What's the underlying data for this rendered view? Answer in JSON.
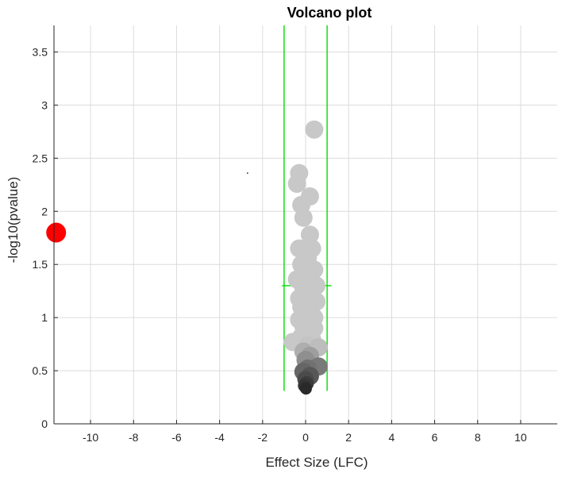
{
  "chart_data": {
    "type": "scatter",
    "title": "Volcano plot",
    "xlabel": "Effect Size (LFC)",
    "ylabel": "-log10(pvalue)",
    "xlim": [
      -11.7,
      11.7
    ],
    "ylim": [
      0,
      3.75
    ],
    "xticks": [
      -10,
      -8,
      -6,
      -4,
      -2,
      0,
      2,
      4,
      6,
      8,
      10
    ],
    "xtick_labels": [
      "-10",
      "-8",
      "-6",
      "-4",
      "-2",
      "0",
      "2",
      "4",
      "6",
      "8",
      "10"
    ],
    "yticks": [
      0,
      0.5,
      1,
      1.5,
      2,
      2.5,
      3,
      3.5
    ],
    "ytick_labels": [
      "0",
      "0.5",
      "1",
      "1.5",
      "2",
      "2.5",
      "3",
      "3.5"
    ],
    "grid": true,
    "legend": "none",
    "threshold_lines": {
      "color": "#00dd00",
      "vertical_x": [
        -1,
        1
      ],
      "vertical_y_range": [
        0.31,
        3.75
      ],
      "horizontal_y": 1.3,
      "horizontal_x_range": [
        -1.1,
        1.2
      ]
    },
    "series": [
      {
        "color": "#ff0000",
        "points": [
          {
            "x": -11.6,
            "y": 1.8
          }
        ]
      },
      {
        "color": "#c8c8c8",
        "gradient_to_dark_near_bottom": true,
        "points": [
          {
            "x": 0.4,
            "y": 2.77
          },
          {
            "x": -0.3,
            "y": 2.36
          },
          {
            "x": -0.4,
            "y": 2.26
          },
          {
            "x": 0.2,
            "y": 2.14
          },
          {
            "x": -0.2,
            "y": 2.06
          },
          {
            "x": -0.1,
            "y": 1.94
          },
          {
            "x": 0.2,
            "y": 1.78
          },
          {
            "x": 0.3,
            "y": 1.65
          },
          {
            "x": -0.3,
            "y": 1.65
          },
          {
            "x": 0.1,
            "y": 1.56
          },
          {
            "x": -0.2,
            "y": 1.5
          },
          {
            "x": 0.4,
            "y": 1.45
          },
          {
            "x": 0.1,
            "y": 1.4
          },
          {
            "x": -0.4,
            "y": 1.36
          },
          {
            "x": 0.5,
            "y": 1.3
          },
          {
            "x": -0.1,
            "y": 1.27
          },
          {
            "x": 0.3,
            "y": 1.22
          },
          {
            "x": -0.3,
            "y": 1.18
          },
          {
            "x": 0.5,
            "y": 1.15
          },
          {
            "x": -0.2,
            "y": 1.1
          },
          {
            "x": 0.1,
            "y": 1.05
          },
          {
            "x": 0.4,
            "y": 1.0
          },
          {
            "x": -0.3,
            "y": 0.98
          },
          {
            "x": 0.2,
            "y": 0.95
          },
          {
            "x": -0.1,
            "y": 0.92
          },
          {
            "x": 0.4,
            "y": 0.9
          },
          {
            "x": 0.0,
            "y": 0.85
          },
          {
            "x": -0.2,
            "y": 0.82
          },
          {
            "x": 0.3,
            "y": 0.8
          },
          {
            "x": -0.6,
            "y": 0.77
          },
          {
            "x": 0.1,
            "y": 0.74
          },
          {
            "x": 0.6,
            "y": 0.72
          },
          {
            "x": -0.1,
            "y": 0.68
          },
          {
            "x": 0.2,
            "y": 0.64
          },
          {
            "x": 0.0,
            "y": 0.6
          },
          {
            "x": 0.6,
            "y": 0.54
          },
          {
            "x": 0.1,
            "y": 0.52
          },
          {
            "x": -0.1,
            "y": 0.49
          },
          {
            "x": 0.2,
            "y": 0.45
          },
          {
            "x": 0.0,
            "y": 0.42
          },
          {
            "x": 0.05,
            "y": 0.38
          },
          {
            "x": -0.05,
            "y": 0.36
          },
          {
            "x": 0.0,
            "y": 0.34
          },
          {
            "x": 0.02,
            "y": 0.33
          }
        ]
      },
      {
        "color": "#000000",
        "points": [
          {
            "x": -2.7,
            "y": 2.36
          }
        ]
      }
    ]
  }
}
